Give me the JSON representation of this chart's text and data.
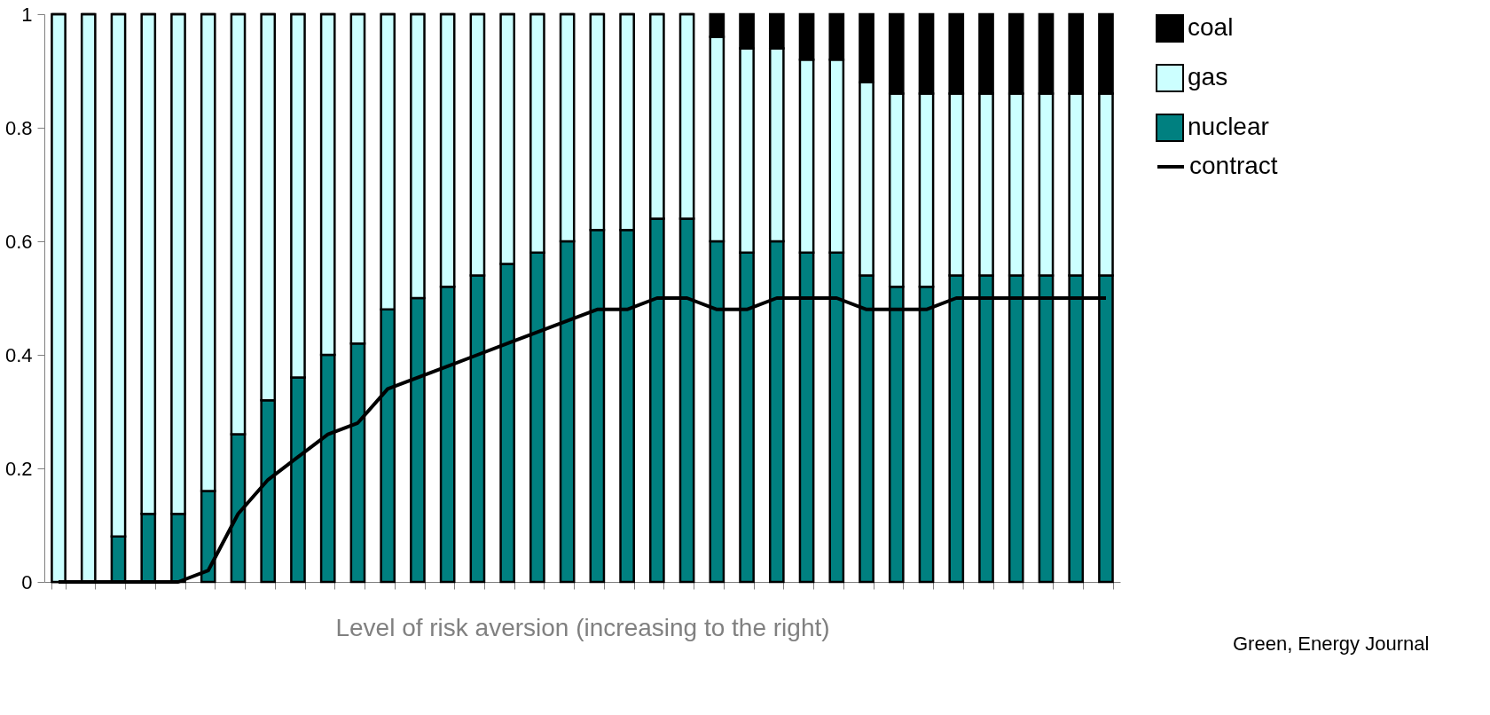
{
  "chart_data": {
    "type": "bar",
    "stacked": true,
    "xlabel": "Level of risk aversion (increasing to the right)",
    "categories": [
      null,
      null,
      null,
      null,
      null,
      null,
      null,
      null,
      null,
      null,
      null,
      null,
      null,
      null,
      null,
      null,
      null,
      null,
      null,
      null,
      null,
      null,
      null,
      null,
      null,
      null,
      null,
      null,
      null,
      null,
      null,
      null,
      null,
      null,
      null,
      null
    ],
    "series": [
      {
        "name": "nuclear",
        "color": "#008080",
        "values": [
          0,
          0,
          0.08,
          0.12,
          0.12,
          0.16,
          0.26,
          0.32,
          0.36,
          0.4,
          0.42,
          0.48,
          0.5,
          0.52,
          0.54,
          0.56,
          0.58,
          0.6,
          0.62,
          0.62,
          0.64,
          0.64,
          0.6,
          0.58,
          0.6,
          0.58,
          0.58,
          0.54,
          0.52,
          0.52,
          0.54,
          0.54,
          0.54,
          0.54,
          0.54,
          0.54
        ]
      },
      {
        "name": "gas",
        "color": "#ccffff",
        "values": [
          1,
          1,
          0.92,
          0.88,
          0.88,
          0.84,
          0.74,
          0.68,
          0.64,
          0.6,
          0.58,
          0.52,
          0.5,
          0.48,
          0.46,
          0.44,
          0.42,
          0.4,
          0.38,
          0.38,
          0.36,
          0.36,
          0.36,
          0.36,
          0.34,
          0.34,
          0.34,
          0.34,
          0.34,
          0.34,
          0.32,
          0.32,
          0.32,
          0.32,
          0.32,
          0.32
        ]
      },
      {
        "name": "coal",
        "color": "#000000",
        "values": [
          0,
          0,
          0,
          0,
          0,
          0,
          0,
          0,
          0,
          0,
          0,
          0,
          0,
          0,
          0,
          0,
          0,
          0,
          0,
          0,
          0,
          0,
          0.04,
          0.06,
          0.06,
          0.08,
          0.08,
          0.12,
          0.14,
          0.14,
          0.14,
          0.14,
          0.14,
          0.14,
          0.14,
          0.14
        ]
      },
      {
        "name": "contract",
        "type": "line",
        "color": "#000000",
        "values": [
          0,
          0,
          0,
          0,
          0,
          0.02,
          0.12,
          0.18,
          0.22,
          0.26,
          0.28,
          0.34,
          0.36,
          0.38,
          0.4,
          0.42,
          0.44,
          0.46,
          0.48,
          0.48,
          0.5,
          0.5,
          0.48,
          0.48,
          0.5,
          0.5,
          0.5,
          0.48,
          0.48,
          0.48,
          0.5,
          0.5,
          0.5,
          0.5,
          0.5,
          0.5
        ]
      }
    ],
    "ylim": [
      0,
      1
    ],
    "yticks": [
      0,
      0.2,
      0.4,
      0.6,
      0.8,
      1
    ],
    "grid": false,
    "legend": "right",
    "tick_labels": "y",
    "annotations": [
      "Green, Energy Journal"
    ]
  }
}
